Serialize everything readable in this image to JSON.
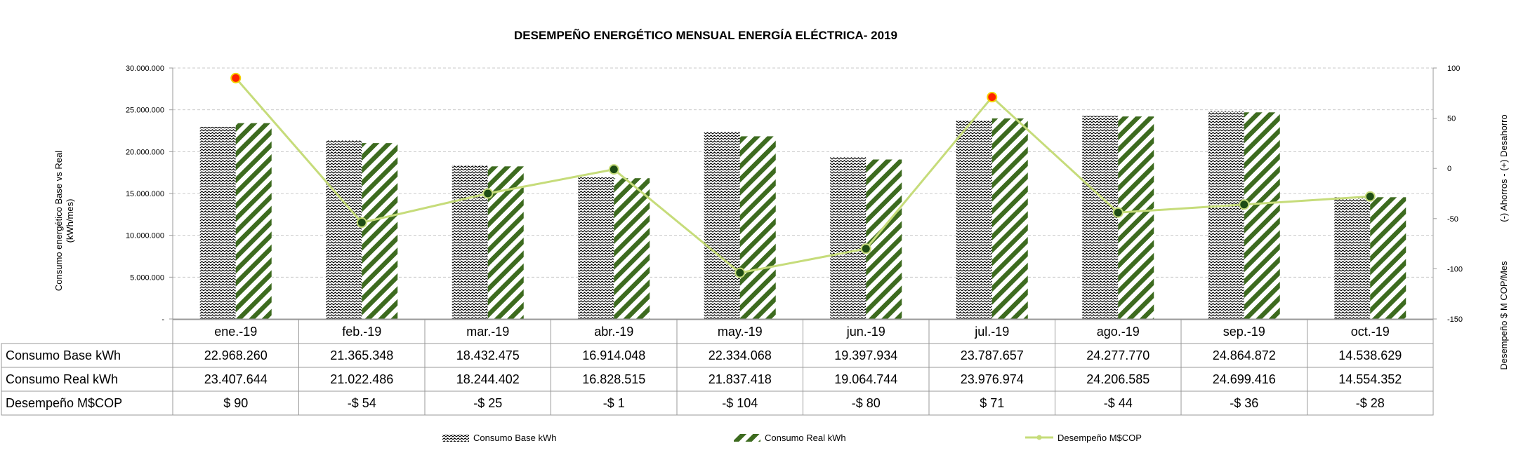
{
  "chart_data": {
    "type": "bar",
    "title": "DESEMPEÑO ENERGÉTICO MENSUAL ENERGÍA ELÉCTRICA- 2019",
    "ylabel": "Consumo energético Base vs Real",
    "ylabel_unit": "(kWh/mes)",
    "y2label": "Desempeño $ M COP/Mes",
    "y2label_sub": "(-) Ahorros   -   (+) Desahorro",
    "categories": [
      "ene.-19",
      "feb.-19",
      "mar.-19",
      "abr.-19",
      "may.-19",
      "jun.-19",
      "jul.-19",
      "ago.-19",
      "sep.-19",
      "oct.-19"
    ],
    "ylim": [
      0,
      30000000
    ],
    "y2lim": [
      -150,
      100
    ],
    "y_ticks": [
      "-",
      "5.000.000",
      "10.000.000",
      "15.000.000",
      "20.000.000",
      "25.000.000",
      "30.000.000"
    ],
    "y2_ticks": [
      "-150",
      "-100",
      "-50",
      "0",
      "50",
      "100"
    ],
    "grid": true,
    "legend_position": "bottom",
    "series": [
      {
        "name": "Consumo Base kWh",
        "axis": "left",
        "kind": "bar",
        "pattern": "zigzag",
        "color": "#000000",
        "values": [
          22968260,
          21365348,
          18432475,
          16914048,
          22334068,
          19397934,
          23787657,
          24277770,
          24864872,
          14538629
        ]
      },
      {
        "name": "Consumo Real kWh",
        "axis": "left",
        "kind": "bar",
        "pattern": "diagonal",
        "color": "#3d6b1f",
        "values": [
          23407644,
          21022486,
          18244402,
          16828515,
          21837418,
          19064744,
          23976974,
          24206585,
          24699416,
          14554352
        ]
      },
      {
        "name": "Desempeño M$COP",
        "axis": "right",
        "kind": "line",
        "color": "#c6dc7a",
        "values": [
          90,
          -54,
          -25,
          -1,
          -104,
          -80,
          71,
          -44,
          -36,
          -28
        ]
      }
    ],
    "point_colors": {
      "positive": "#ff2200",
      "negative": "#1e4d14"
    },
    "table": {
      "rows": [
        {
          "label": "Consumo Base kWh",
          "cells": [
            "22.968.260",
            "21.365.348",
            "18.432.475",
            "16.914.048",
            "22.334.068",
            "19.397.934",
            "23.787.657",
            "24.277.770",
            "24.864.872",
            "14.538.629"
          ]
        },
        {
          "label": "Consumo Real kWh",
          "cells": [
            "23.407.644",
            "21.022.486",
            "18.244.402",
            "16.828.515",
            "21.837.418",
            "19.064.744",
            "23.976.974",
            "24.206.585",
            "24.699.416",
            "14.554.352"
          ]
        },
        {
          "label": "Desempeño M$COP",
          "cells": [
            "$ 90",
            "-$ 54",
            "-$ 25",
            "-$ 1",
            "-$ 104",
            "-$ 80",
            "$ 71",
            "-$ 44",
            "-$ 36",
            "-$ 28"
          ]
        }
      ]
    }
  }
}
